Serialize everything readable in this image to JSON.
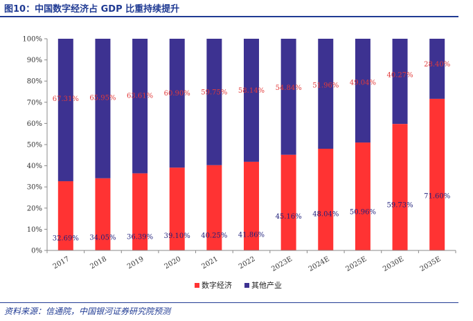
{
  "figure": {
    "title": "图10：中国数字经济占 GDP 比重持续提升",
    "source": "资料来源：信通院，中国银河证券研究院预测"
  },
  "chart_data": {
    "type": "bar",
    "stacked": true,
    "percent_stacked": true,
    "title": "中国数字经济占 GDP 比重持续提升",
    "categories": [
      "2017",
      "2018",
      "2019",
      "2020",
      "2021",
      "2022",
      "2023E",
      "2024E",
      "2025E",
      "2030E",
      "2035E"
    ],
    "series": [
      {
        "name": "数字经济",
        "color": "#ff3333",
        "values": [
          32.69,
          34.05,
          36.39,
          39.1,
          40.25,
          41.86,
          45.16,
          48.04,
          50.96,
          59.73,
          71.6
        ],
        "labels": [
          "32.69%",
          "34.05%",
          "36.39%",
          "39.10%",
          "40.25%",
          "41.86%",
          "45.16%",
          "48.04%",
          "50.96%",
          "59.73%",
          "71.60%"
        ]
      },
      {
        "name": "其他产业",
        "color": "#3d3291",
        "values": [
          67.31,
          65.95,
          63.61,
          60.9,
          59.75,
          58.14,
          54.84,
          51.96,
          49.04,
          40.27,
          28.4
        ],
        "labels": [
          "67.31%",
          "65.95%",
          "63.61%",
          "60.90%",
          "59.75%",
          "58.14%",
          "54.84%",
          "51.96%",
          "49.04%",
          "40.27%",
          "28.40%"
        ]
      }
    ],
    "y_ticks": [
      "0%",
      "10%",
      "20%",
      "30%",
      "40%",
      "50%",
      "60%",
      "70%",
      "80%",
      "90%",
      "100%"
    ],
    "ylim": [
      0,
      100
    ],
    "xlabel": "",
    "ylabel": "",
    "grid": false,
    "legend_position": "bottom-center"
  }
}
